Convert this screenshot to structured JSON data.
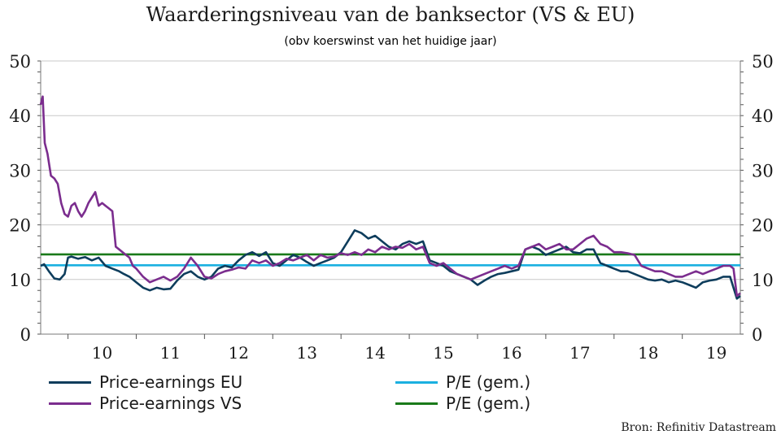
{
  "title": "Waarderingsniveau van de banksector (VS & EU)",
  "subtitle": "(obv koerswinst van het huidige jaar)",
  "source": "Bron: Refinitiv Datastream",
  "chart_data": {
    "type": "line",
    "ylim": [
      0,
      50
    ],
    "yticks": [
      0,
      10,
      20,
      30,
      40,
      50
    ],
    "xlim": [
      2009.6,
      2019.85
    ],
    "x_tick_labels": [
      "10",
      "11",
      "12",
      "13",
      "14",
      "15",
      "16",
      "17",
      "18",
      "19"
    ],
    "grid": true,
    "legend_position": "bottom",
    "series": [
      {
        "name": "Price-earnings EU",
        "color": "#0e3d5c",
        "x": [
          2009.6,
          2009.65,
          2009.72,
          2009.8,
          2009.88,
          2009.95,
          2010.0,
          2010.05,
          2010.15,
          2010.25,
          2010.35,
          2010.45,
          2010.55,
          2010.65,
          2010.75,
          2010.82,
          2010.9,
          2011.0,
          2011.1,
          2011.2,
          2011.3,
          2011.4,
          2011.5,
          2011.6,
          2011.7,
          2011.8,
          2011.9,
          2012.0,
          2012.1,
          2012.2,
          2012.3,
          2012.4,
          2012.5,
          2012.6,
          2012.7,
          2012.8,
          2012.9,
          2013.0,
          2013.1,
          2013.2,
          2013.3,
          2013.4,
          2013.5,
          2013.6,
          2013.7,
          2013.8,
          2013.9,
          2014.0,
          2014.1,
          2014.2,
          2014.3,
          2014.4,
          2014.5,
          2014.6,
          2014.7,
          2014.8,
          2014.9,
          2015.0,
          2015.1,
          2015.2,
          2015.3,
          2015.4,
          2015.5,
          2015.6,
          2015.7,
          2015.8,
          2015.9,
          2016.0,
          2016.1,
          2016.2,
          2016.3,
          2016.4,
          2016.5,
          2016.6,
          2016.7,
          2016.8,
          2016.9,
          2017.0,
          2017.1,
          2017.2,
          2017.3,
          2017.4,
          2017.5,
          2017.6,
          2017.7,
          2017.8,
          2017.9,
          2018.0,
          2018.1,
          2018.2,
          2018.3,
          2018.4,
          2018.5,
          2018.6,
          2018.7,
          2018.8,
          2018.9,
          2019.0,
          2019.1,
          2019.2,
          2019.3,
          2019.4,
          2019.5,
          2019.6,
          2019.7,
          2019.75,
          2019.8,
          2019.85
        ],
        "values": [
          12.5,
          12.8,
          11.5,
          10.2,
          10.0,
          11.0,
          14.0,
          14.2,
          13.8,
          14.1,
          13.5,
          14.0,
          12.5,
          12.0,
          11.5,
          11.0,
          10.5,
          9.5,
          8.5,
          8.0,
          8.5,
          8.2,
          8.3,
          9.8,
          11.0,
          11.5,
          10.5,
          10.0,
          10.5,
          12.0,
          12.5,
          12.2,
          13.5,
          14.5,
          15.0,
          14.3,
          15.0,
          13.0,
          12.5,
          13.5,
          14.5,
          14.0,
          13.2,
          12.5,
          13.0,
          13.5,
          14.0,
          15.0,
          17.0,
          19.0,
          18.5,
          17.5,
          18.0,
          17.0,
          16.0,
          15.5,
          16.5,
          17.0,
          16.5,
          17.0,
          13.5,
          13.0,
          12.5,
          11.5,
          11.0,
          10.5,
          10.0,
          9.0,
          9.8,
          10.5,
          11.0,
          11.2,
          11.5,
          11.8,
          15.5,
          16.0,
          15.5,
          14.5,
          15.0,
          15.5,
          16.0,
          15.0,
          14.8,
          15.5,
          15.5,
          13.0,
          12.5,
          12.0,
          11.5,
          11.5,
          11.0,
          10.5,
          10.0,
          9.8,
          10.0,
          9.5,
          9.8,
          9.5,
          9.0,
          8.5,
          9.5,
          9.8,
          10.0,
          10.5,
          10.5,
          8.5,
          6.5,
          7.0
        ]
      },
      {
        "name": "Price-earnings VS",
        "color": "#7b2d8e",
        "x": [
          2009.6,
          2009.63,
          2009.66,
          2009.7,
          2009.75,
          2009.8,
          2009.85,
          2009.9,
          2009.95,
          2010.0,
          2010.05,
          2010.1,
          2010.15,
          2010.2,
          2010.25,
          2010.3,
          2010.35,
          2010.4,
          2010.45,
          2010.5,
          2010.55,
          2010.6,
          2010.65,
          2010.7,
          2010.75,
          2010.8,
          2010.85,
          2010.9,
          2010.95,
          2011.0,
          2011.1,
          2011.2,
          2011.3,
          2011.4,
          2011.5,
          2011.6,
          2011.7,
          2011.8,
          2011.9,
          2012.0,
          2012.1,
          2012.2,
          2012.3,
          2012.4,
          2012.5,
          2012.6,
          2012.7,
          2012.8,
          2012.9,
          2013.0,
          2013.1,
          2013.2,
          2013.3,
          2013.4,
          2013.5,
          2013.6,
          2013.7,
          2013.8,
          2013.9,
          2014.0,
          2014.1,
          2014.2,
          2014.3,
          2014.4,
          2014.5,
          2014.6,
          2014.7,
          2014.8,
          2014.9,
          2015.0,
          2015.1,
          2015.2,
          2015.3,
          2015.4,
          2015.5,
          2015.6,
          2015.7,
          2015.8,
          2015.9,
          2016.0,
          2016.1,
          2016.2,
          2016.3,
          2016.4,
          2016.5,
          2016.6,
          2016.7,
          2016.8,
          2016.9,
          2017.0,
          2017.1,
          2017.2,
          2017.3,
          2017.4,
          2017.5,
          2017.6,
          2017.7,
          2017.8,
          2017.9,
          2018.0,
          2018.1,
          2018.2,
          2018.3,
          2018.4,
          2018.5,
          2018.6,
          2018.7,
          2018.8,
          2018.9,
          2019.0,
          2019.1,
          2019.2,
          2019.3,
          2019.4,
          2019.5,
          2019.6,
          2019.7,
          2019.75,
          2019.8,
          2019.85
        ],
        "values": [
          42.0,
          43.5,
          35.0,
          33.0,
          29.0,
          28.5,
          27.5,
          24.0,
          22.0,
          21.5,
          23.5,
          24.0,
          22.5,
          21.5,
          22.5,
          24.0,
          25.0,
          26.0,
          23.5,
          24.0,
          23.5,
          23.0,
          22.5,
          16.0,
          15.5,
          15.0,
          14.5,
          14.0,
          12.5,
          12.0,
          10.5,
          9.5,
          10.0,
          10.5,
          9.8,
          10.5,
          12.0,
          14.0,
          12.5,
          10.5,
          10.2,
          11.0,
          11.5,
          11.8,
          12.2,
          12.0,
          13.5,
          13.0,
          13.5,
          12.5,
          13.0,
          13.8,
          13.5,
          14.0,
          14.5,
          13.5,
          14.5,
          14.0,
          14.2,
          14.8,
          14.5,
          15.0,
          14.5,
          15.5,
          15.0,
          16.0,
          15.5,
          16.0,
          15.8,
          16.5,
          15.5,
          16.0,
          13.0,
          12.5,
          13.0,
          12.0,
          11.0,
          10.5,
          10.0,
          10.5,
          11.0,
          11.5,
          12.0,
          12.5,
          12.0,
          12.5,
          15.5,
          16.0,
          16.5,
          15.5,
          16.0,
          16.5,
          15.5,
          15.5,
          16.5,
          17.5,
          18.0,
          16.5,
          16.0,
          15.0,
          15.0,
          14.8,
          14.5,
          12.5,
          12.0,
          11.5,
          11.5,
          11.0,
          10.5,
          10.5,
          11.0,
          11.5,
          11.0,
          11.5,
          12.0,
          12.5,
          12.5,
          12.0,
          7.0,
          7.5
        ]
      },
      {
        "name": "P/E (gem.)",
        "color": "#1ab0e0",
        "x": [
          2009.6,
          2019.85
        ],
        "values": [
          12.6,
          12.6
        ]
      },
      {
        "name": "P/E (gem.)",
        "color": "#1a7a1a",
        "x": [
          2009.6,
          2019.85
        ],
        "values": [
          14.6,
          14.6
        ]
      }
    ]
  }
}
